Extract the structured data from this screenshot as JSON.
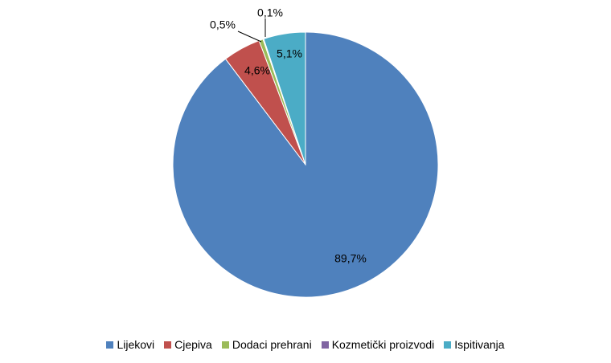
{
  "chart_data": {
    "type": "pie",
    "categories": [
      "Lijekovi",
      "Cjepiva",
      "Dodaci prehrani",
      "Kozmetički proizvodi",
      "Ispitivanja"
    ],
    "values": [
      89.7,
      4.6,
      0.5,
      0.1,
      5.1
    ],
    "data_labels": [
      "89,7%",
      "4,6%",
      "0,5%",
      "0,1%",
      "5,1%"
    ],
    "colors": [
      "#4F81BD",
      "#C0504D",
      "#9BBB59",
      "#8064A2",
      "#4BACC6"
    ],
    "title": "",
    "legend_position": "bottom",
    "start_angle": "top",
    "direction": "clockwise",
    "unit": "%"
  }
}
